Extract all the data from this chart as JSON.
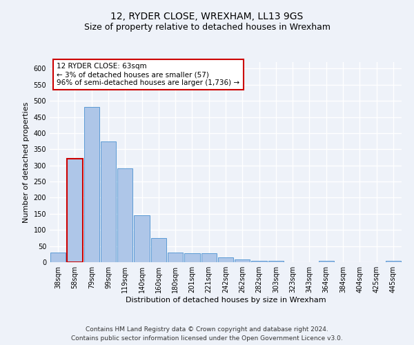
{
  "title": "12, RYDER CLOSE, WREXHAM, LL13 9GS",
  "subtitle": "Size of property relative to detached houses in Wrexham",
  "xlabel": "Distribution of detached houses by size in Wrexham",
  "ylabel": "Number of detached properties",
  "categories": [
    "38sqm",
    "58sqm",
    "79sqm",
    "99sqm",
    "119sqm",
    "140sqm",
    "160sqm",
    "180sqm",
    "201sqm",
    "221sqm",
    "242sqm",
    "262sqm",
    "282sqm",
    "303sqm",
    "323sqm",
    "343sqm",
    "364sqm",
    "384sqm",
    "404sqm",
    "425sqm",
    "445sqm"
  ],
  "values": [
    30,
    320,
    480,
    375,
    290,
    145,
    75,
    30,
    28,
    27,
    15,
    8,
    5,
    5,
    0,
    0,
    5,
    0,
    0,
    0,
    5
  ],
  "bar_color": "#aec6e8",
  "bar_edge_color": "#5b9bd5",
  "highlight_index": 1,
  "highlight_color": "#aec6e8",
  "highlight_edge_color": "#cc0000",
  "annotation_text": "12 RYDER CLOSE: 63sqm\n← 3% of detached houses are smaller (57)\n96% of semi-detached houses are larger (1,736) →",
  "annotation_box_color": "#ffffff",
  "annotation_box_edge_color": "#cc0000",
  "ylim": [
    0,
    620
  ],
  "yticks": [
    0,
    50,
    100,
    150,
    200,
    250,
    300,
    350,
    400,
    450,
    500,
    550,
    600
  ],
  "footer_line1": "Contains HM Land Registry data © Crown copyright and database right 2024.",
  "footer_line2": "Contains public sector information licensed under the Open Government Licence v3.0.",
  "background_color": "#eef2f9",
  "grid_color": "#ffffff",
  "title_fontsize": 10,
  "subtitle_fontsize": 9,
  "axis_label_fontsize": 8,
  "tick_fontsize": 7,
  "annotation_fontsize": 7.5,
  "footer_fontsize": 6.5
}
